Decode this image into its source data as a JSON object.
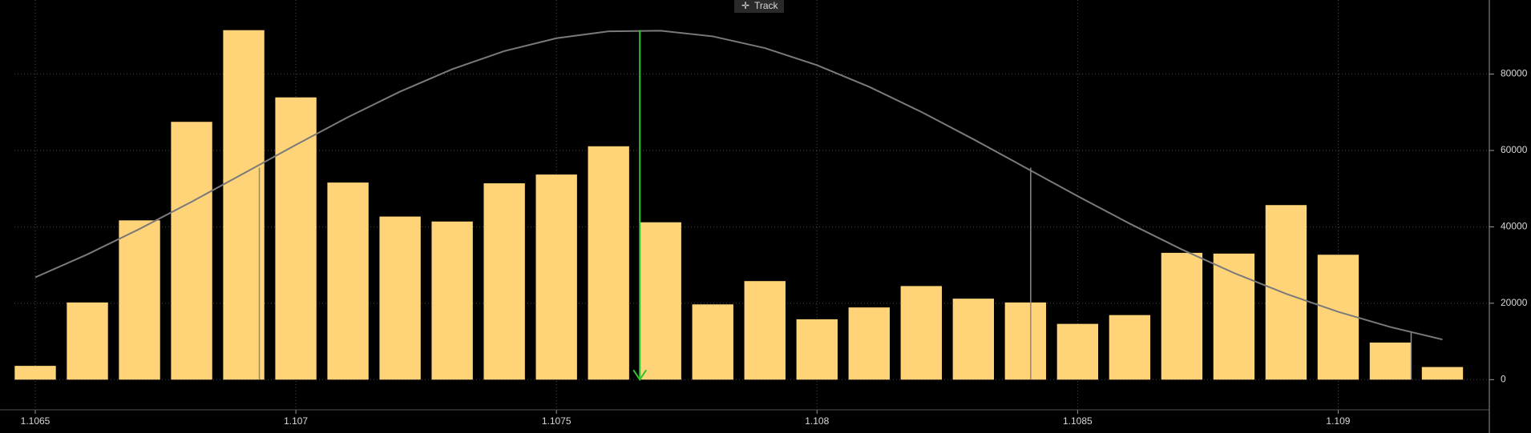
{
  "toolbar": {
    "track": "Track"
  },
  "chart_data": {
    "type": "histogram",
    "bins": [
      1.10645,
      1.10655,
      1.10665,
      1.10675,
      1.10685,
      1.10695,
      1.10705,
      1.10715,
      1.10725,
      1.10735,
      1.10745,
      1.10755,
      1.10765,
      1.10775,
      1.10785,
      1.10795,
      1.10805,
      1.10815,
      1.10825,
      1.10835,
      1.10845,
      1.10855,
      1.10865,
      1.10875,
      1.10885,
      1.10895,
      1.10905,
      1.10915,
      1.10925
    ],
    "values": [
      3600,
      20200,
      41700,
      67500,
      91500,
      73900,
      51600,
      42700,
      41400,
      51400,
      53700,
      61100,
      41200,
      19700,
      25800,
      15800,
      18900,
      24500,
      21200,
      20200,
      14600,
      16900,
      33200,
      33000,
      45700,
      32700,
      9700,
      3300
    ],
    "color": "#ffd479",
    "curve": {
      "color": "#7a7a7a",
      "x": [
        1.1065,
        1.1066,
        1.1067,
        1.1068,
        1.1069,
        1.107,
        1.1071,
        1.1072,
        1.1073,
        1.1074,
        1.1075,
        1.1076,
        1.1077,
        1.1078,
        1.1079,
        1.108,
        1.1081,
        1.1082,
        1.1083,
        1.1084,
        1.1085,
        1.1086,
        1.1087,
        1.1088,
        1.1089,
        1.109,
        1.1091,
        1.1092
      ],
      "values": [
        26780,
        32800,
        39450,
        46570,
        54000,
        61480,
        68720,
        75420,
        81290,
        86020,
        89390,
        91200,
        91360,
        89880,
        86820,
        82330,
        76680,
        70110,
        62950,
        55500,
        48050,
        40840,
        34080,
        27930,
        22470,
        17750,
        13780,
        10500
      ]
    },
    "mean_line": {
      "x": 1.10766,
      "y": 91500,
      "color": "#2fc42f"
    },
    "reference_lines": {
      "color": "#8a8a8a",
      "x": [
        1.10693,
        1.10841,
        1.10914
      ],
      "y": [
        55500,
        55500,
        12400
      ]
    },
    "xlim": [
      1.10646,
      1.10929
    ],
    "ylim": [
      -7900,
      99400
    ],
    "xticks": [
      1.1065,
      1.107,
      1.1075,
      1.108,
      1.1085,
      1.109
    ],
    "yticks": [
      0,
      20000,
      40000,
      60000,
      80000
    ],
    "grid": true
  }
}
